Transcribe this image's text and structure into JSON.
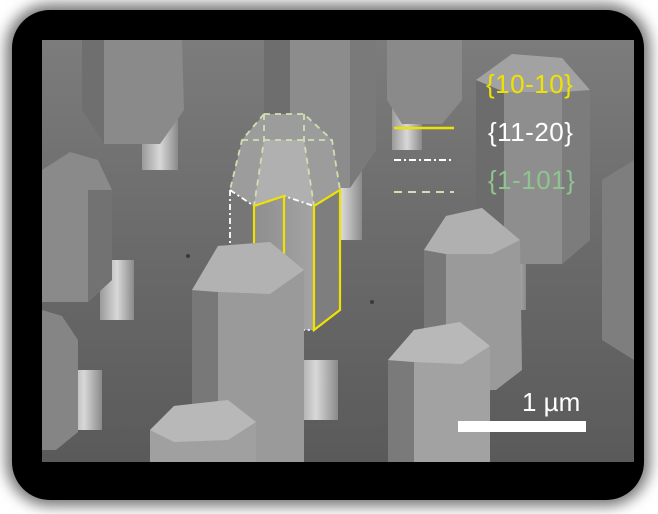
{
  "image": {
    "kind": "SEM micrograph of hexagonal nanowire pillars",
    "legend": [
      {
        "label": "{10-10}",
        "color": "#f0e200",
        "line_style": "solid"
      },
      {
        "label": "{11-20}",
        "color": "#ffffff",
        "line_style": "dash-dot"
      },
      {
        "label": "{1-101}",
        "color": "#8fc48f",
        "line_style": "dashed"
      }
    ],
    "scale_bar": {
      "label": "1 µm"
    }
  }
}
